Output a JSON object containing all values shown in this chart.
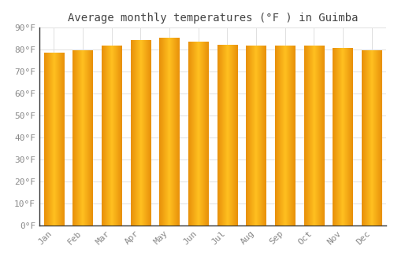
{
  "title": "Average monthly temperatures (°F ) in Guimba",
  "months": [
    "Jan",
    "Feb",
    "Mar",
    "Apr",
    "May",
    "Jun",
    "Jul",
    "Aug",
    "Sep",
    "Oct",
    "Nov",
    "Dec"
  ],
  "values": [
    78.5,
    79.5,
    81.5,
    84.0,
    85.0,
    83.5,
    82.0,
    81.5,
    81.5,
    81.5,
    80.5,
    79.5
  ],
  "bar_color_left": "#E8900A",
  "bar_color_center": "#FFC020",
  "ylim": [
    0,
    90
  ],
  "yticks": [
    0,
    10,
    20,
    30,
    40,
    50,
    60,
    70,
    80,
    90
  ],
  "ytick_labels": [
    "0°F",
    "10°F",
    "20°F",
    "30°F",
    "40°F",
    "50°F",
    "60°F",
    "70°F",
    "80°F",
    "90°F"
  ],
  "background_color": "#ffffff",
  "grid_color": "#e0e0e0",
  "title_fontsize": 10,
  "tick_fontsize": 8,
  "bar_width": 0.7,
  "spine_color": "#333333"
}
